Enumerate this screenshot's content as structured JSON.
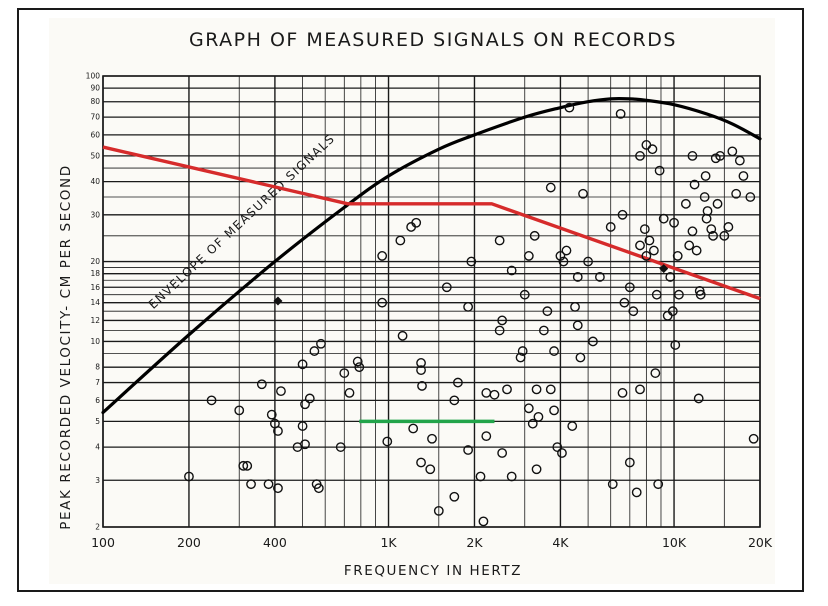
{
  "chart_data": {
    "type": "scatter",
    "title": "GRAPH OF MEASURED SIGNALS ON RECORDS",
    "xlabel": "FREQUENCY  IN  HERTZ",
    "ylabel": "PEAK RECORDED VELOCITY- CM PER SECOND",
    "x_scale": "log",
    "y_scale": "log",
    "xlim": [
      100,
      20000
    ],
    "ylim": [
      2,
      100
    ],
    "grid": true,
    "x_ticks": [
      {
        "value": 100,
        "label": "100"
      },
      {
        "value": 200,
        "label": "200"
      },
      {
        "value": 400,
        "label": "400"
      },
      {
        "value": 1000,
        "label": "1K"
      },
      {
        "value": 2000,
        "label": "2K"
      },
      {
        "value": 4000,
        "label": "4K"
      },
      {
        "value": 10000,
        "label": "10K"
      },
      {
        "value": 20000,
        "label": "20K"
      }
    ],
    "y_ticks": [
      {
        "value": 2,
        "label": "2"
      },
      {
        "value": 3,
        "label": "3"
      },
      {
        "value": 4,
        "label": "4"
      },
      {
        "value": 5,
        "label": "5"
      },
      {
        "value": 6,
        "label": "6"
      },
      {
        "value": 7,
        "label": "7"
      },
      {
        "value": 8,
        "label": "8"
      },
      {
        "value": 10,
        "label": "10"
      },
      {
        "value": 12,
        "label": "12"
      },
      {
        "value": 14,
        "label": "14"
      },
      {
        "value": 16,
        "label": "16"
      },
      {
        "value": 18,
        "label": "18"
      },
      {
        "value": 20,
        "label": "20"
      },
      {
        "value": 30,
        "label": "30"
      },
      {
        "value": 40,
        "label": "40"
      },
      {
        "value": 50,
        "label": "50"
      },
      {
        "value": 60,
        "label": "60"
      },
      {
        "value": 70,
        "label": "70"
      },
      {
        "value": 80,
        "label": "80"
      },
      {
        "value": 90,
        "label": "90"
      },
      {
        "value": 100,
        "label": "100"
      }
    ],
    "envelope": {
      "label": "ENVELOPE OF MEASURED SIGNALS",
      "color": "#000000",
      "points": [
        [
          100,
          5.4
        ],
        [
          200,
          10.6
        ],
        [
          400,
          20
        ],
        [
          700,
          32
        ],
        [
          1000,
          42
        ],
        [
          1500,
          53
        ],
        [
          2000,
          60
        ],
        [
          3000,
          70
        ],
        [
          4000,
          76
        ],
        [
          5000,
          80
        ],
        [
          6000,
          82
        ],
        [
          7000,
          82
        ],
        [
          8000,
          81
        ],
        [
          10000,
          78
        ],
        [
          13000,
          72
        ],
        [
          16000,
          66
        ],
        [
          20000,
          58
        ]
      ]
    },
    "series": [
      {
        "color": "#d62b2b",
        "points": [
          [
            100,
            54
          ],
          [
            720,
            33
          ],
          [
            2300,
            33
          ],
          [
            20000,
            14.5
          ]
        ]
      },
      {
        "color": "#22a44a",
        "points": [
          [
            790,
            5
          ],
          [
            2350,
            5
          ]
        ]
      }
    ],
    "filled_points": [
      [
        410,
        14.2
      ],
      [
        9200,
        18.8
      ]
    ],
    "scatter_points": [
      [
        200,
        3.1
      ],
      [
        240,
        6.0
      ],
      [
        300,
        5.5
      ],
      [
        310,
        3.4
      ],
      [
        320,
        3.4
      ],
      [
        330,
        2.9
      ],
      [
        360,
        6.9
      ],
      [
        380,
        2.9
      ],
      [
        390,
        5.3
      ],
      [
        400,
        4.9
      ],
      [
        410,
        2.8
      ],
      [
        410,
        4.6
      ],
      [
        420,
        6.5
      ],
      [
        480,
        4.0
      ],
      [
        500,
        8.2
      ],
      [
        500,
        4.8
      ],
      [
        510,
        4.1
      ],
      [
        510,
        5.8
      ],
      [
        530,
        6.1
      ],
      [
        550,
        9.2
      ],
      [
        560,
        2.9
      ],
      [
        570,
        2.8
      ],
      [
        580,
        9.8
      ],
      [
        680,
        4.0
      ],
      [
        700,
        7.6
      ],
      [
        730,
        6.4
      ],
      [
        780,
        8.4
      ],
      [
        790,
        8.0
      ],
      [
        950,
        21
      ],
      [
        950,
        14
      ],
      [
        990,
        4.2
      ],
      [
        1100,
        24
      ],
      [
        1120,
        10.5
      ],
      [
        1200,
        27
      ],
      [
        1250,
        28
      ],
      [
        1220,
        4.7
      ],
      [
        1300,
        3.5
      ],
      [
        1300,
        8.3
      ],
      [
        1300,
        7.8
      ],
      [
        1310,
        6.8
      ],
      [
        1400,
        3.3
      ],
      [
        1420,
        4.3
      ],
      [
        1500,
        2.3
      ],
      [
        1600,
        16
      ],
      [
        1700,
        6.0
      ],
      [
        1700,
        2.6
      ],
      [
        1750,
        7.0
      ],
      [
        1900,
        13.5
      ],
      [
        1950,
        20
      ],
      [
        1900,
        3.9
      ],
      [
        2100,
        3.1
      ],
      [
        2150,
        2.1
      ],
      [
        2200,
        6.4
      ],
      [
        2200,
        4.4
      ],
      [
        2350,
        6.3
      ],
      [
        2450,
        24
      ],
      [
        2450,
        11
      ],
      [
        2500,
        12
      ],
      [
        2500,
        3.8
      ],
      [
        2600,
        6.6
      ],
      [
        2700,
        18.5
      ],
      [
        2700,
        3.1
      ],
      [
        2900,
        8.7
      ],
      [
        2950,
        9.2
      ],
      [
        3000,
        15
      ],
      [
        3100,
        21
      ],
      [
        3100,
        5.6
      ],
      [
        3200,
        4.9
      ],
      [
        3250,
        25
      ],
      [
        3300,
        6.6
      ],
      [
        3300,
        3.3
      ],
      [
        3350,
        5.2
      ],
      [
        3500,
        11
      ],
      [
        3600,
        13
      ],
      [
        3700,
        38
      ],
      [
        3700,
        6.6
      ],
      [
        3800,
        9.2
      ],
      [
        3800,
        5.5
      ],
      [
        3900,
        4.0
      ],
      [
        4000,
        21
      ],
      [
        4050,
        3.8
      ],
      [
        4100,
        20
      ],
      [
        4200,
        22
      ],
      [
        4300,
        76
      ],
      [
        4400,
        4.8
      ],
      [
        4500,
        13.5
      ],
      [
        4600,
        11.5
      ],
      [
        4600,
        17.5
      ],
      [
        4700,
        8.7
      ],
      [
        4800,
        36
      ],
      [
        5000,
        20
      ],
      [
        5200,
        10
      ],
      [
        5500,
        17.5
      ],
      [
        6000,
        27
      ],
      [
        6100,
        2.9
      ],
      [
        6500,
        72
      ],
      [
        6600,
        30
      ],
      [
        6700,
        14
      ],
      [
        6600,
        6.4
      ],
      [
        7000,
        3.5
      ],
      [
        7000,
        16
      ],
      [
        7200,
        13
      ],
      [
        7400,
        2.7
      ],
      [
        7600,
        50
      ],
      [
        7600,
        23
      ],
      [
        7600,
        6.6
      ],
      [
        7900,
        26.5
      ],
      [
        8000,
        55
      ],
      [
        8000,
        21
      ],
      [
        8200,
        24
      ],
      [
        8400,
        53
      ],
      [
        8500,
        22
      ],
      [
        8600,
        7.6
      ],
      [
        8700,
        15
      ],
      [
        8800,
        2.9
      ],
      [
        8900,
        44
      ],
      [
        9200,
        29
      ],
      [
        9500,
        12.5
      ],
      [
        9700,
        17.5
      ],
      [
        9900,
        13
      ],
      [
        10000,
        28
      ],
      [
        10100,
        9.7
      ],
      [
        10300,
        21
      ],
      [
        10400,
        15
      ],
      [
        11000,
        33
      ],
      [
        11300,
        23
      ],
      [
        11600,
        50
      ],
      [
        11600,
        26
      ],
      [
        11800,
        39
      ],
      [
        12000,
        22
      ],
      [
        12200,
        6.1
      ],
      [
        12300,
        15.5
      ],
      [
        12400,
        15
      ],
      [
        12800,
        35
      ],
      [
        12900,
        42
      ],
      [
        13000,
        29
      ],
      [
        13100,
        31
      ],
      [
        13500,
        26.5
      ],
      [
        13700,
        25
      ],
      [
        14000,
        49
      ],
      [
        14200,
        33
      ],
      [
        14500,
        50
      ],
      [
        15000,
        25
      ],
      [
        15500,
        27
      ],
      [
        16000,
        52
      ],
      [
        16500,
        36
      ],
      [
        17000,
        48
      ],
      [
        17500,
        42
      ],
      [
        18500,
        35
      ],
      [
        19000,
        4.3
      ]
    ]
  }
}
